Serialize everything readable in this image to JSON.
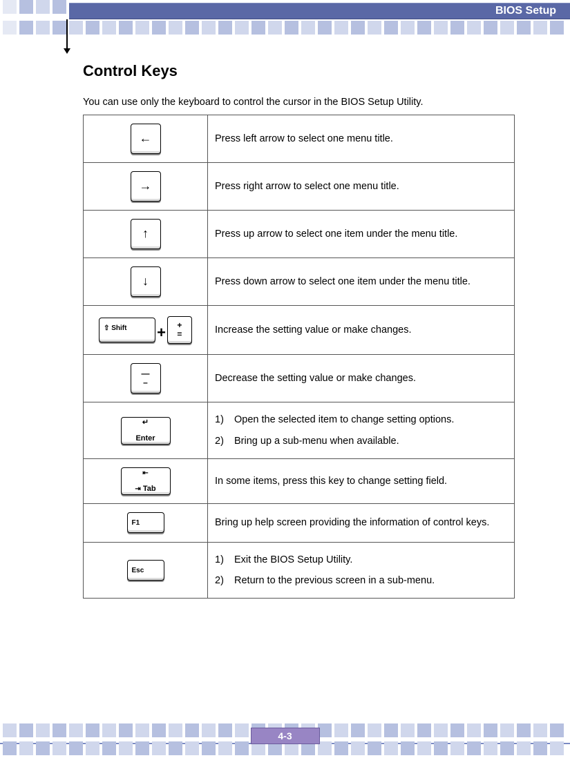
{
  "header": {
    "title": "BIOS Setup"
  },
  "section": {
    "heading": "Control Keys",
    "intro": "You can use only the keyboard to control the cursor in the BIOS Setup Utility."
  },
  "rows": [
    {
      "key_glyph": "←",
      "key_style": "arrow",
      "desc": "Press left arrow to select one menu title."
    },
    {
      "key_glyph": "→",
      "key_style": "arrow",
      "desc": "Press right arrow to select one menu title."
    },
    {
      "key_glyph": "↑",
      "key_style": "arrow",
      "desc": "Press up arrow to select one item under the menu title."
    },
    {
      "key_glyph": "↓",
      "key_style": "arrow",
      "desc": "Press down arrow to select one item under the menu title."
    },
    {
      "key_style": "shift_plus",
      "shift_label": "⇧ Shift",
      "plus_top": "+",
      "plus_bot": "=",
      "desc": "Increase the setting value or make changes."
    },
    {
      "key_style": "minus",
      "minus_top": "—",
      "minus_bot": "–",
      "desc": "Decrease the setting value or make changes."
    },
    {
      "key_style": "enter",
      "enter_label": "↵ Enter",
      "list": [
        "Open the selected item to change setting options.",
        "Bring up a sub-menu when available."
      ]
    },
    {
      "key_style": "tab",
      "tab_label": "Tab",
      "desc": "In some items, press this key to change setting field."
    },
    {
      "key_style": "f1",
      "f1_label": "F1",
      "desc": "Bring up help screen providing the information of control keys."
    },
    {
      "key_style": "esc",
      "esc_label": "Esc",
      "list": [
        "Exit the BIOS Setup Utility.",
        "Return to the previous screen in a sub-menu."
      ]
    }
  ],
  "footer": {
    "page": "4-3"
  },
  "colors": {
    "header_bg": "#5a68a6",
    "squares": "#b6c0e0",
    "pagenum_bg": "#9885c4"
  }
}
